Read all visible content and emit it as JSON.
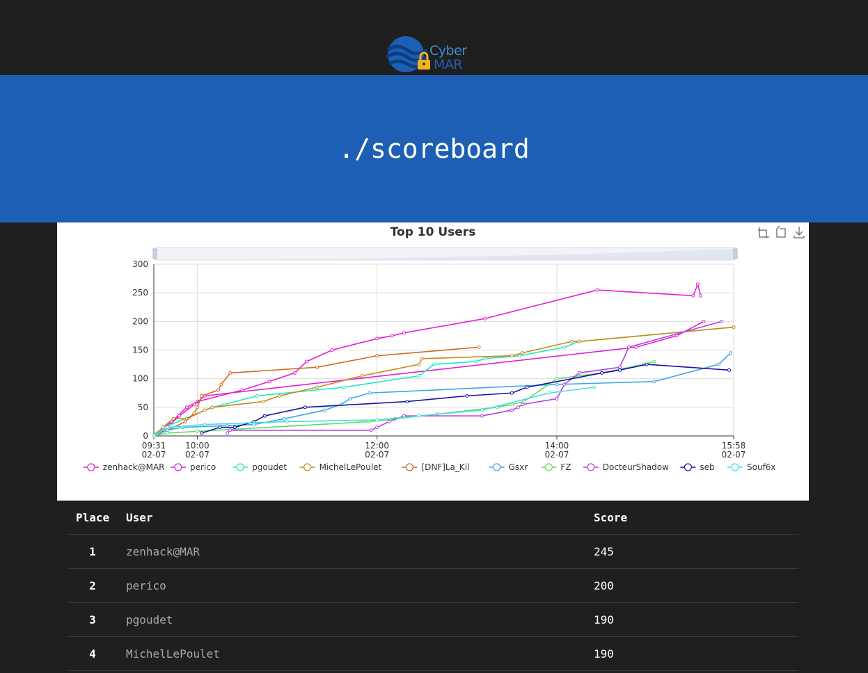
{
  "page": {
    "title": "./scoreboard"
  },
  "logo": {
    "text_top": "Cyber",
    "text_bottom": "MAR"
  },
  "chart_toolbar": {
    "icons": [
      "zoom-icon",
      "restore-icon",
      "download-icon"
    ]
  },
  "chart_data": {
    "type": "line",
    "title": "Top 10 Users",
    "x_tick_labels": [
      {
        "time": "09:31",
        "date": "02-07"
      },
      {
        "time": "10:00",
        "date": "02-07"
      },
      {
        "time": "12:00",
        "date": "02-07"
      },
      {
        "time": "14:00",
        "date": "02-07"
      },
      {
        "time": "15:58",
        "date": "02-07"
      }
    ],
    "xlim": [
      "09:31",
      "15:58"
    ],
    "ylim": [
      0,
      300
    ],
    "y_ticks": [
      0,
      50,
      100,
      150,
      200,
      250,
      300
    ],
    "grid": true,
    "legend_position": "bottom",
    "series": [
      {
        "name": "zenhack@MAR",
        "color": "#e21fd5",
        "points": [
          [
            "09:31",
            0
          ],
          [
            "09:38",
            15
          ],
          [
            "09:43",
            25
          ],
          [
            "09:53",
            50
          ],
          [
            "10:00",
            60
          ],
          [
            "10:30",
            80
          ],
          [
            "10:48",
            95
          ],
          [
            "11:05",
            110
          ],
          [
            "11:13",
            130
          ],
          [
            "11:30",
            150
          ],
          [
            "12:00",
            170
          ],
          [
            "12:10",
            175
          ],
          [
            "12:18",
            180
          ],
          [
            "13:12",
            205
          ],
          [
            "14:27",
            255
          ],
          [
            "15:31",
            245
          ],
          [
            "15:34",
            265
          ],
          [
            "15:36",
            245
          ]
        ]
      },
      {
        "name": "perico",
        "color": "#e21fd5",
        "points": [
          [
            "09:31",
            0
          ],
          [
            "09:35",
            5
          ],
          [
            "09:40",
            15
          ],
          [
            "09:48",
            35
          ],
          [
            "09:58",
            55
          ],
          [
            "10:05",
            70
          ],
          [
            "14:53",
            155
          ],
          [
            "15:20",
            175
          ],
          [
            "15:38",
            200
          ]
        ]
      },
      {
        "name": "pgoudet",
        "color": "#1ee8c3",
        "points": [
          [
            "09:31",
            0
          ],
          [
            "09:33",
            5
          ],
          [
            "09:38",
            15
          ],
          [
            "10:10",
            50
          ],
          [
            "10:18",
            55
          ],
          [
            "10:40",
            70
          ],
          [
            "11:38",
            85
          ],
          [
            "12:28",
            105
          ],
          [
            "12:38",
            125
          ],
          [
            "13:06",
            130
          ],
          [
            "13:12",
            135
          ],
          [
            "13:35",
            140
          ],
          [
            "14:05",
            155
          ],
          [
            "14:15",
            165
          ],
          [
            "15:58",
            190
          ]
        ]
      },
      {
        "name": "MichelLePoulet",
        "color": "#c98a12",
        "points": [
          [
            "09:31",
            0
          ],
          [
            "09:37",
            15
          ],
          [
            "09:44",
            30
          ],
          [
            "09:53",
            30
          ],
          [
            "10:05",
            45
          ],
          [
            "10:10",
            50
          ],
          [
            "10:44",
            60
          ],
          [
            "10:55",
            70
          ],
          [
            "11:20",
            85
          ],
          [
            "11:50",
            105
          ],
          [
            "12:28",
            125
          ],
          [
            "12:30",
            135
          ],
          [
            "13:30",
            140
          ],
          [
            "13:37",
            145
          ],
          [
            "14:10",
            165
          ],
          [
            "14:15",
            165
          ],
          [
            "15:58",
            190
          ]
        ]
      },
      {
        "name": "[DNF]La_Kil",
        "color": "#d2691e",
        "points": [
          [
            "09:31",
            0
          ],
          [
            "09:40",
            10
          ],
          [
            "09:52",
            25
          ],
          [
            "09:58",
            40
          ],
          [
            "10:00",
            50
          ],
          [
            "10:03",
            70
          ],
          [
            "10:14",
            80
          ],
          [
            "10:16",
            90
          ],
          [
            "10:22",
            110
          ],
          [
            "11:20",
            120
          ],
          [
            "12:00",
            140
          ],
          [
            "13:08",
            155
          ]
        ]
      },
      {
        "name": "Gsxr",
        "color": "#3aa7e8",
        "points": [
          [
            "09:31",
            0
          ],
          [
            "09:40",
            10
          ],
          [
            "09:50",
            15
          ],
          [
            "10:20",
            18
          ],
          [
            "10:38",
            20
          ],
          [
            "10:58",
            30
          ],
          [
            "11:25",
            45
          ],
          [
            "11:36",
            55
          ],
          [
            "11:42",
            65
          ],
          [
            "11:55",
            75
          ],
          [
            "14:00",
            90
          ],
          [
            "15:05",
            95
          ],
          [
            "15:48",
            125
          ],
          [
            "15:56",
            145
          ]
        ]
      },
      {
        "name": "FZ",
        "color": "#55e05f",
        "points": [
          [
            "09:31",
            0
          ],
          [
            "09:40",
            5
          ],
          [
            "10:00",
            8
          ],
          [
            "11:55",
            25
          ],
          [
            "12:12",
            30
          ],
          [
            "12:40",
            38
          ],
          [
            "13:20",
            50
          ],
          [
            "13:30",
            55
          ],
          [
            "13:38",
            60
          ],
          [
            "14:00",
            100
          ],
          [
            "14:30",
            110
          ],
          [
            "14:58",
            125
          ],
          [
            "15:05",
            130
          ]
        ]
      },
      {
        "name": "DocteurShadow",
        "color": "#b73ee8",
        "points": [
          [
            "10:20",
            5
          ],
          [
            "10:22",
            10
          ],
          [
            "11:56",
            10
          ],
          [
            "12:00",
            15
          ],
          [
            "12:08",
            25
          ],
          [
            "12:18",
            35
          ],
          [
            "13:10",
            35
          ],
          [
            "13:30",
            45
          ],
          [
            "13:34",
            50
          ],
          [
            "13:37",
            55
          ],
          [
            "14:00",
            65
          ],
          [
            "14:05",
            90
          ],
          [
            "14:15",
            110
          ],
          [
            "14:42",
            120
          ],
          [
            "14:48",
            155
          ],
          [
            "15:50",
            200
          ]
        ]
      },
      {
        "name": "seb",
        "color": "#1414a8",
        "points": [
          [
            "10:03",
            5
          ],
          [
            "10:15",
            15
          ],
          [
            "10:25",
            15
          ],
          [
            "10:38",
            25
          ],
          [
            "10:45",
            35
          ],
          [
            "11:12",
            50
          ],
          [
            "12:20",
            60
          ],
          [
            "13:00",
            70
          ],
          [
            "13:30",
            75
          ],
          [
            "13:40",
            85
          ],
          [
            "14:30",
            110
          ],
          [
            "14:42",
            115
          ],
          [
            "15:00",
            125
          ],
          [
            "15:55",
            115
          ]
        ]
      },
      {
        "name": "Souf6x",
        "color": "#48dede",
        "points": [
          [
            "09:31",
            0
          ],
          [
            "09:40",
            15
          ],
          [
            "10:05",
            20
          ],
          [
            "11:00",
            25
          ],
          [
            "12:00",
            28
          ],
          [
            "12:28",
            35
          ],
          [
            "13:10",
            45
          ],
          [
            "13:55",
            75
          ],
          [
            "14:25",
            85
          ]
        ]
      }
    ]
  },
  "table": {
    "headers": {
      "place": "Place",
      "user": "User",
      "score": "Score"
    },
    "rows": [
      {
        "place": "1",
        "user": "zenhack@MAR",
        "score": "245"
      },
      {
        "place": "2",
        "user": "perico",
        "score": "200"
      },
      {
        "place": "3",
        "user": "pgoudet",
        "score": "190"
      },
      {
        "place": "4",
        "user": "MichelLePoulet",
        "score": "190"
      }
    ]
  }
}
